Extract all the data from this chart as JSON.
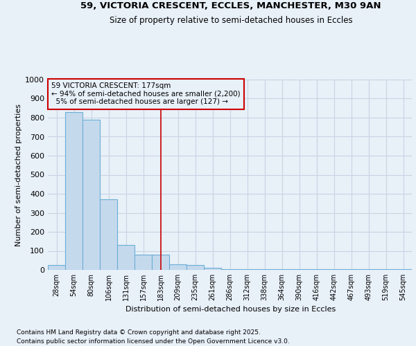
{
  "title_line1": "59, VICTORIA CRESCENT, ECCLES, MANCHESTER, M30 9AN",
  "title_line2": "Size of property relative to semi-detached houses in Eccles",
  "xlabel": "Distribution of semi-detached houses by size in Eccles",
  "ylabel": "Number of semi-detached properties",
  "footnote1": "Contains HM Land Registry data © Crown copyright and database right 2025.",
  "footnote2": "Contains public sector information licensed under the Open Government Licence v3.0.",
  "annotation_line1": "59 VICTORIA CRESCENT: 177sqm",
  "annotation_line2": "← 94% of semi-detached houses are smaller (2,200)",
  "annotation_line3": "  5% of semi-detached houses are larger (127) →",
  "bin_labels": [
    "28sqm",
    "54sqm",
    "80sqm",
    "106sqm",
    "131sqm",
    "157sqm",
    "183sqm",
    "209sqm",
    "235sqm",
    "261sqm",
    "286sqm",
    "312sqm",
    "338sqm",
    "364sqm",
    "390sqm",
    "416sqm",
    "442sqm",
    "467sqm",
    "493sqm",
    "519sqm",
    "545sqm"
  ],
  "bar_heights": [
    25,
    830,
    790,
    370,
    130,
    80,
    80,
    30,
    25,
    10,
    5,
    5,
    5,
    5,
    5,
    5,
    5,
    5,
    5,
    5,
    5
  ],
  "bar_color": "#c5d9ed",
  "bar_edge_color": "#6aaed6",
  "vline_x_index": 6,
  "vline_color": "#cc0000",
  "ylim": [
    0,
    1000
  ],
  "yticks": [
    0,
    100,
    200,
    300,
    400,
    500,
    600,
    700,
    800,
    900,
    1000
  ],
  "background_color": "#e8f0f8",
  "annotation_box_color": "#cc0000",
  "grid_color": "#c8d4e4"
}
